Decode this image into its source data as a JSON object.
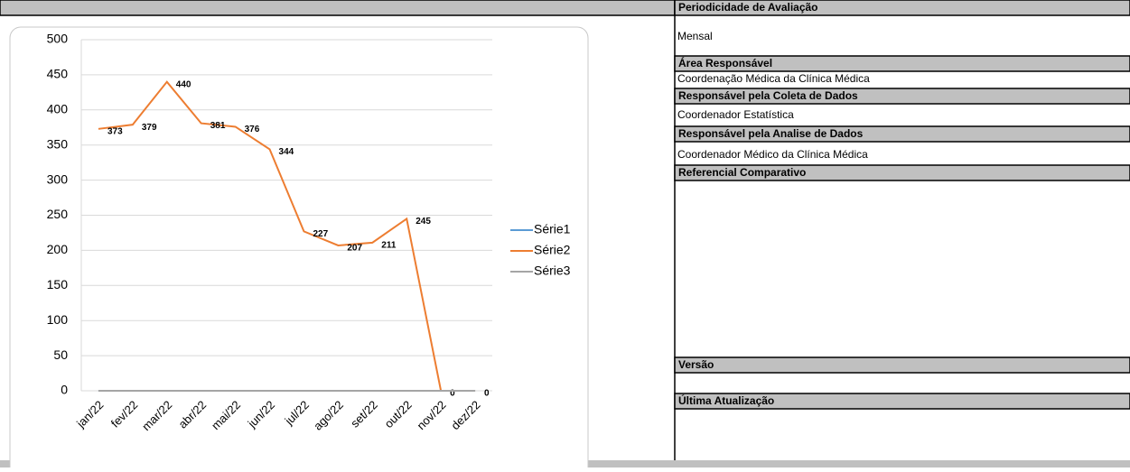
{
  "chart_data": {
    "type": "line",
    "categories": [
      "jan/22",
      "fev/22",
      "mar/22",
      "abr/22",
      "mai/22",
      "jun/22",
      "jul/22",
      "ago/22",
      "set/22",
      "out/22",
      "nov/22",
      "dez/22"
    ],
    "series": [
      {
        "name": "Série1",
        "color": "#5b9bd5",
        "values": [
          0,
          0,
          0,
          0,
          0,
          0,
          0,
          0,
          0,
          0,
          0,
          0
        ]
      },
      {
        "name": "Série2",
        "color": "#ed7d31",
        "values": [
          373,
          379,
          440,
          381,
          376,
          344,
          227,
          207,
          211,
          245,
          0,
          0
        ],
        "show_labels": true
      },
      {
        "name": "Série3",
        "color": "#a5a5a5",
        "values": [
          0,
          0,
          0,
          0,
          0,
          0,
          0,
          0,
          0,
          0,
          0,
          0
        ]
      }
    ],
    "ylim": [
      0,
      500
    ],
    "yticks": [
      0,
      50,
      100,
      150,
      200,
      250,
      300,
      350,
      400,
      450,
      500
    ],
    "grid": true,
    "legend": "right"
  },
  "panel": {
    "rows": [
      {
        "header": "Periodicidade de Avaliação",
        "value": "Mensal"
      },
      {
        "header": "Área Responsável",
        "value": "Coordenação Médica da Clínica Médica"
      },
      {
        "header": "Responsável pela Coleta de Dados",
        "value": "Coordenador Estatística"
      },
      {
        "header": "Responsável pela Analise de Dados",
        "value": "Coordenador Médico da Clínica Médica"
      },
      {
        "header": "Referencial Comparativo"
      },
      {
        "header": "Versão"
      },
      {
        "header": "Última Atualização"
      }
    ]
  }
}
